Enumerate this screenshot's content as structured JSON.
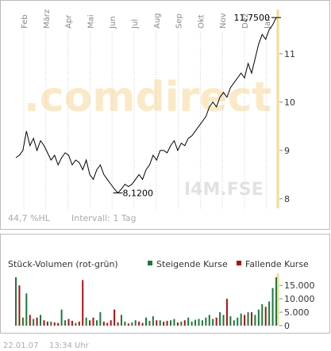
{
  "chart_data": [
    {
      "type": "line",
      "months": [
        "Feb",
        "März",
        "Apr",
        "Mai",
        "Jun",
        "Jul",
        "Aug",
        "Sep",
        "Okt",
        "Nov",
        "Dez",
        "Jan"
      ],
      "watermark": ".comdirect",
      "symbol": "I4M.FSE",
      "range_label": "44,7 %HL",
      "interval_label": "Intervall: 1 Tag",
      "series": [
        {
          "color": "#000000",
          "values": [
            8.85,
            8.9,
            9.0,
            9.4,
            9.1,
            9.25,
            9.0,
            9.2,
            9.1,
            8.95,
            8.8,
            8.9,
            8.7,
            8.85,
            8.95,
            8.9,
            8.7,
            8.8,
            8.75,
            8.6,
            8.8,
            8.5,
            8.4,
            8.6,
            8.7,
            8.5,
            8.4,
            8.3,
            8.2,
            8.12,
            8.2,
            8.3,
            8.25,
            8.3,
            8.4,
            8.5,
            8.4,
            8.6,
            8.7,
            8.9,
            8.8,
            9.0,
            9.0,
            8.95,
            9.1,
            9.2,
            9.0,
            9.15,
            9.1,
            9.25,
            9.3,
            9.4,
            9.5,
            9.6,
            9.7,
            9.9,
            10.0,
            9.9,
            10.1,
            10.2,
            10.1,
            10.3,
            10.4,
            10.5,
            10.6,
            10.5,
            10.8,
            10.6,
            10.9,
            11.2,
            11.4,
            11.3,
            11.5,
            11.6,
            11.75
          ]
        }
      ],
      "max": {
        "value": 11.75,
        "label": "11,7500"
      },
      "min": {
        "value": 8.12,
        "label": "8,1200"
      },
      "ylim": [
        7.8,
        11.9
      ],
      "yticks": [
        8,
        9,
        10,
        11
      ],
      "current_line_color": "#f9d98c"
    },
    {
      "type": "bar",
      "title": "Stück-Volumen (rot-grün)",
      "series": [
        {
          "name": "Steigende Kurse",
          "color": "#1a7a3a",
          "values": [
            18000,
            null,
            3000,
            12000,
            null,
            2500,
            null,
            4000,
            null,
            null,
            1500,
            null,
            null,
            6000,
            2000,
            null,
            null,
            1000,
            null,
            null,
            3000,
            null,
            null,
            2000,
            5000,
            null,
            null,
            null,
            null,
            null,
            4000,
            1500,
            null,
            1200,
            2000,
            null,
            null,
            3000,
            1800,
            3500,
            null,
            2000,
            null,
            null,
            2000,
            2500,
            null,
            1500,
            null,
            3000,
            1500,
            2200,
            2500,
            2000,
            3000,
            4000,
            2500,
            null,
            5000,
            4000,
            null,
            3500,
            2000,
            3000,
            4500,
            null,
            5000,
            null,
            4000,
            6000,
            8000,
            null,
            9000,
            14000,
            18000
          ]
        },
        {
          "name": "Fallende Kurse",
          "color": "#b01010",
          "values": [
            null,
            15000,
            null,
            null,
            4000,
            null,
            3000,
            null,
            2000,
            1500,
            null,
            1200,
            1000,
            null,
            null,
            2500,
            1800,
            null,
            1500,
            17000,
            null,
            2000,
            3000,
            null,
            null,
            1500,
            1000,
            2000,
            6000,
            1200,
            null,
            null,
            800,
            null,
            null,
            1500,
            1000,
            null,
            null,
            null,
            2000,
            null,
            1500,
            1800,
            null,
            null,
            1200,
            null,
            2000,
            null,
            null,
            null,
            null,
            null,
            null,
            null,
            null,
            3000,
            null,
            null,
            10000,
            null,
            null,
            null,
            null,
            4000,
            null,
            5000,
            null,
            null,
            null,
            7000,
            null,
            null,
            null
          ]
        }
      ],
      "ylim": [
        0,
        18000
      ],
      "yticks": [
        0,
        {
          "value": 5000,
          "label": "5.000"
        },
        {
          "value": 10000,
          "label": "10.000"
        },
        {
          "value": 15000,
          "label": "15.000"
        }
      ]
    }
  ],
  "footer": {
    "date": "22.01.07",
    "time": "13:34 Uhr"
  }
}
